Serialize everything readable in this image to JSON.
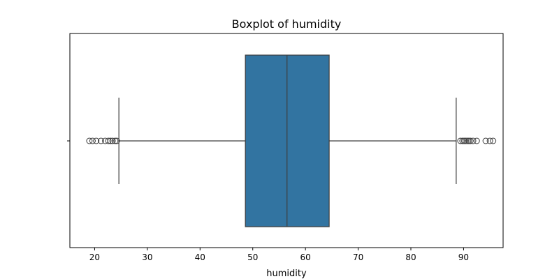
{
  "chart_data": {
    "type": "boxplot",
    "title": "Boxplot of humidity",
    "xlabel": "humidity",
    "ylabel": "",
    "orientation": "horizontal",
    "xlim": [
      15.3,
      97.5
    ],
    "x_ticks": [
      20,
      30,
      40,
      50,
      60,
      70,
      80,
      90
    ],
    "grid": false,
    "box": {
      "color": "#3274a1",
      "q1": 48.6,
      "median": 56.5,
      "q3": 64.5,
      "whisker_low": 24.6,
      "whisker_high": 88.6
    },
    "outliers": [
      19.0,
      19.6,
      20.3,
      21.2,
      22.0,
      22.6,
      23.0,
      23.4,
      23.9,
      24.2,
      89.4,
      89.8,
      90.1,
      90.4,
      90.7,
      91.0,
      91.3,
      91.8,
      92.5,
      94.2,
      95.0,
      95.6
    ]
  }
}
